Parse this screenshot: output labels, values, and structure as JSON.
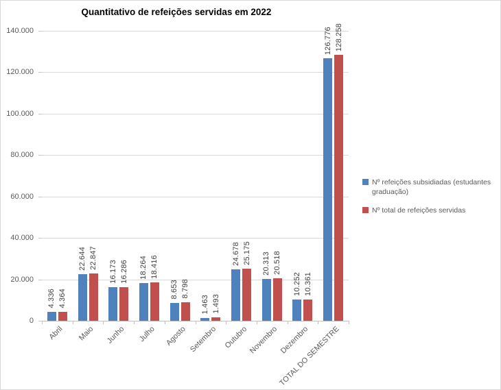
{
  "chart_data": {
    "type": "bar",
    "title": "Quantitativo de refeições servidas em 2022",
    "categories": [
      "Abril",
      "Maio",
      "Junho",
      "Julho",
      "Agosto",
      "Setembro",
      "Outubro",
      "Novembro",
      "Dezembro",
      "TOTAL DO SEMESTRE"
    ],
    "series": [
      {
        "name": "Nº refeições subsidiadas (estudantes graduação)",
        "color": "#4F81BD",
        "values": [
          4336,
          22644,
          16173,
          18264,
          8653,
          1463,
          24678,
          20313,
          10252,
          126776
        ],
        "labels": [
          "4.336",
          "22.644",
          "16.173",
          "18.264",
          "8.653",
          "1.463",
          "24.678",
          "20.313",
          "10.252",
          "126.776"
        ]
      },
      {
        "name": "Nº total de refeições servidas",
        "color": "#C0504D",
        "values": [
          4364,
          22847,
          16286,
          18416,
          8798,
          1493,
          25175,
          20518,
          10361,
          128258
        ],
        "labels": [
          "4.364",
          "22.847",
          "16.286",
          "18.416",
          "8.798",
          "1.493",
          "25.175",
          "20.518",
          "10.361",
          "128.258"
        ]
      }
    ],
    "y_axis": {
      "min": 0,
      "max": 140000,
      "step": 20000,
      "tick_labels": [
        "0",
        "20.000",
        "40.000",
        "60.000",
        "80.000",
        "100.000",
        "120.000",
        "140.000"
      ]
    },
    "xlabel": "",
    "ylabel": "",
    "grid": true,
    "legend_position": "right",
    "colors": {
      "series1": "#4F81BD",
      "series2": "#C0504D",
      "gridline": "#D9D9D9",
      "axis_line": "#BFBFBF",
      "axis_text": "#595959",
      "data_label_text": "#404040",
      "title_text": "#000000",
      "background": "#FFFFFF"
    }
  }
}
